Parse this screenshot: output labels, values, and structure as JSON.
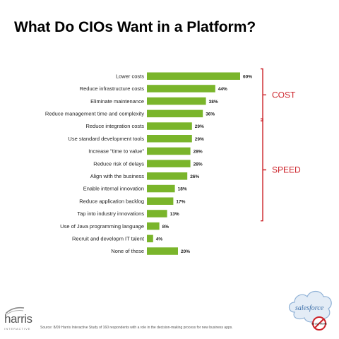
{
  "title": "What Do CIOs Want in a Platform?",
  "chart_data": {
    "type": "bar",
    "orientation": "horizontal",
    "bar_color": "#7ab52b",
    "categories": [
      "Lower costs",
      "Reduce infrastructure costs",
      "Eliminate maintenance",
      "Reduce management time and complexity",
      "Reduce integration costs",
      "Use standard development tools",
      "Increase \"time to value\"",
      "Reduce risk of delays",
      "Align with the business",
      "Enable internal innovation",
      "Reduce application backlog",
      "Tap into industry innovations",
      "Use of Java programming language",
      "Recruit and developm IT talent",
      "None of these"
    ],
    "values": [
      60,
      44,
      38,
      36,
      29,
      29,
      28,
      28,
      26,
      18,
      17,
      13,
      8,
      4,
      20
    ],
    "value_labels": [
      "60%",
      "44%",
      "38%",
      "36%",
      "29%",
      "29%",
      "28%",
      "28%",
      "26%",
      "18%",
      "17%",
      "13%",
      "8%",
      "4%",
      "20%"
    ],
    "xlim": [
      0,
      60
    ],
    "grid": false,
    "groups": [
      {
        "label": "COST",
        "color": "#cc2229",
        "start": 0,
        "end": 3
      },
      {
        "label": "SPEED",
        "color": "#cc2229",
        "start": 4,
        "end": 11
      }
    ]
  },
  "source": "Source: 8/09 Harris Interactive Study of 160 respondents with a role in the decision-making process for new business apps.",
  "logos": {
    "harris": {
      "word": "harris",
      "sub": "INTERACTIVE"
    },
    "salesforce": {
      "word": "salesforce",
      "badge": "NO SOFTWARE"
    }
  }
}
